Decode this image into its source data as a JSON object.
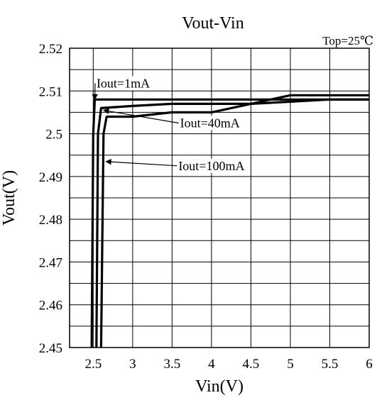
{
  "chart_data": {
    "type": "line",
    "title": "Vout-Vin",
    "subtitle": "Top=25℃",
    "xlabel": "Vin(V)",
    "ylabel": "Vout(V)",
    "xlim": [
      2.2,
      6.0
    ],
    "ylim": [
      2.45,
      2.52
    ],
    "x_ticks": [
      2.5,
      3,
      3.5,
      4,
      4.5,
      5,
      5.5,
      6
    ],
    "x_tick_labels": [
      "2.5",
      "3",
      "3.5",
      "4",
      "4.5",
      "5",
      "5.5",
      "6"
    ],
    "y_ticks": [
      2.45,
      2.46,
      2.47,
      2.48,
      2.49,
      2.5,
      2.51,
      2.52
    ],
    "y_tick_labels": [
      "2.45",
      "2.46",
      "2.47",
      "2.48",
      "2.49",
      "2.5",
      "2.51",
      "2.52"
    ],
    "grid": true,
    "series": [
      {
        "name": "Iout=1mA",
        "x": [
          2.48,
          2.5,
          2.52,
          3.0,
          3.5,
          4.0,
          4.5,
          5.0,
          5.5,
          6.0
        ],
        "y": [
          2.45,
          2.5,
          2.508,
          2.508,
          2.508,
          2.508,
          2.508,
          2.508,
          2.508,
          2.508
        ]
      },
      {
        "name": "Iout=40mA",
        "x": [
          2.54,
          2.56,
          2.6,
          3.0,
          3.5,
          4.0,
          4.5,
          5.0,
          5.5,
          6.0
        ],
        "y": [
          2.45,
          2.5,
          2.506,
          2.5065,
          2.507,
          2.507,
          2.507,
          2.5075,
          2.508,
          2.508
        ]
      },
      {
        "name": "Iout=100mA",
        "x": [
          2.6,
          2.63,
          2.67,
          3.0,
          3.5,
          4.0,
          4.5,
          5.0,
          5.5,
          6.0
        ],
        "y": [
          2.45,
          2.5,
          2.504,
          2.504,
          2.505,
          2.505,
          2.507,
          2.509,
          2.509,
          2.509
        ]
      }
    ],
    "annotations": [
      {
        "text": "Iout=1mA",
        "series": 0,
        "label_at": [
          2.88,
          2.5108
        ],
        "arrow_to": [
          2.52,
          2.508
        ]
      },
      {
        "text": "Iout=40mA",
        "series": 1,
        "label_at": [
          3.98,
          2.5015
        ],
        "arrow_to": [
          2.63,
          2.5055
        ]
      },
      {
        "text": "Iout=100mA",
        "series": 2,
        "label_at": [
          4.0,
          2.4915
        ],
        "arrow_to": [
          2.66,
          2.4935
        ]
      }
    ]
  }
}
